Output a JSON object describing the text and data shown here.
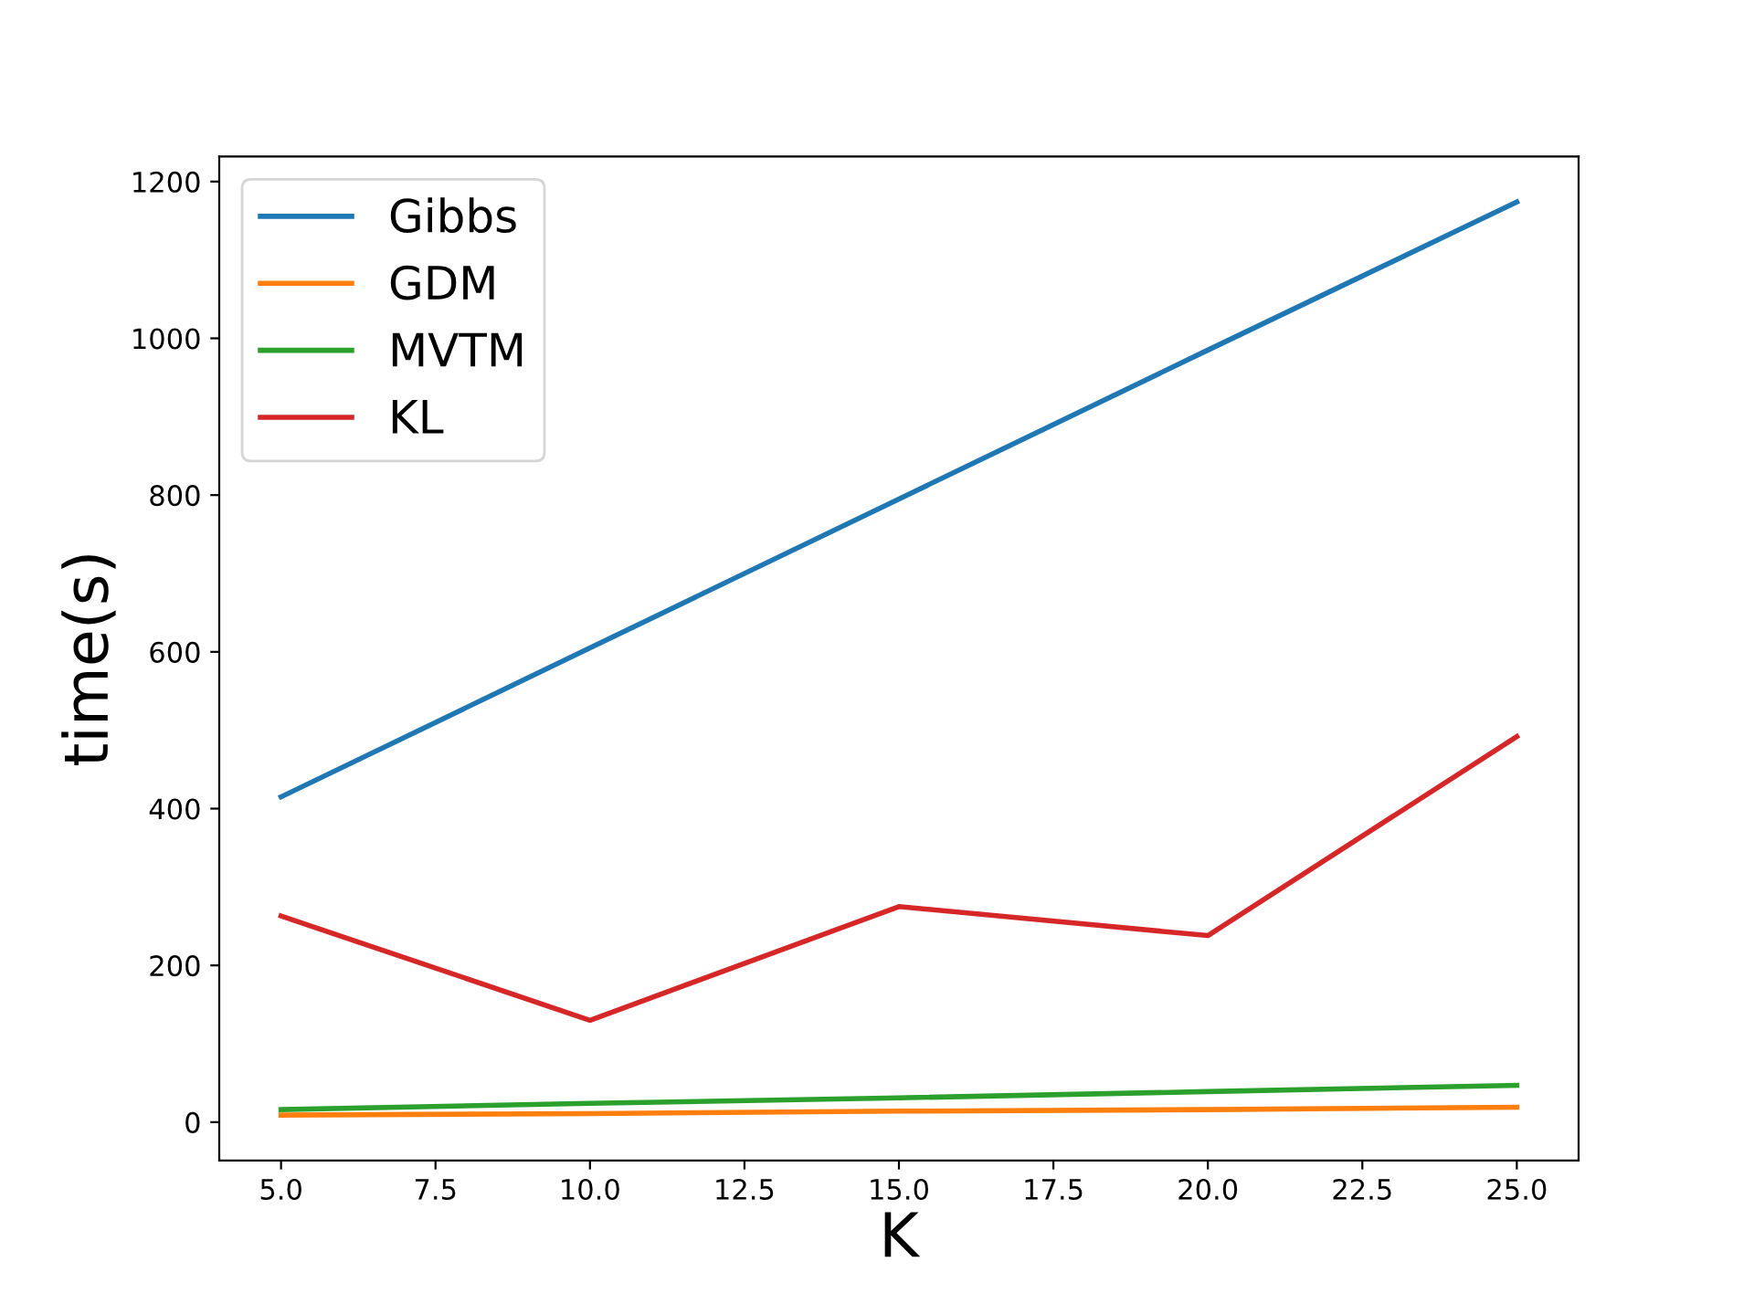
{
  "chart_data": {
    "type": "line",
    "xlabel": "K",
    "ylabel": "time(s)",
    "x": [
      5,
      10,
      15,
      20,
      25
    ],
    "series": [
      {
        "name": "Gibbs",
        "color": "#1f77b4",
        "values": [
          415,
          605,
          795,
          985,
          1174
        ]
      },
      {
        "name": "GDM",
        "color": "#ff7f0e",
        "values": [
          9,
          11,
          14,
          16,
          19
        ]
      },
      {
        "name": "MVTM",
        "color": "#2ca02c",
        "values": [
          16,
          24,
          31,
          39,
          47
        ]
      },
      {
        "name": "KL",
        "color": "#d62728",
        "values": [
          263,
          130,
          275,
          238,
          492
        ]
      }
    ],
    "xlim": [
      4,
      26
    ],
    "ylim": [
      -49,
      1232
    ],
    "xticks": [
      {
        "value": 5,
        "label": "5.0"
      },
      {
        "value": 7.5,
        "label": "7.5"
      },
      {
        "value": 10,
        "label": "10.0"
      },
      {
        "value": 12.5,
        "label": "12.5"
      },
      {
        "value": 15,
        "label": "15.0"
      },
      {
        "value": 17.5,
        "label": "17.5"
      },
      {
        "value": 20,
        "label": "20.0"
      },
      {
        "value": 22.5,
        "label": "22.5"
      },
      {
        "value": 25,
        "label": "25.0"
      }
    ],
    "yticks": [
      0,
      200,
      400,
      600,
      800,
      1000,
      1200
    ],
    "legend": "top left",
    "grid": false
  }
}
